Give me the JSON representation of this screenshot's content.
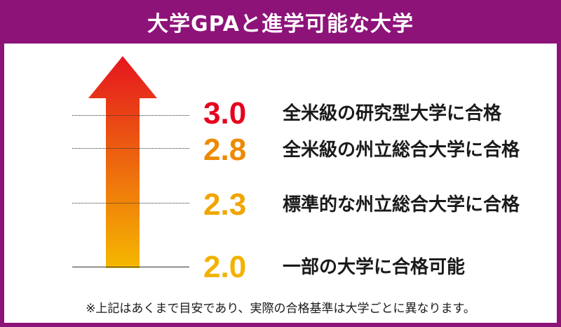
{
  "header": {
    "title": "大学GPAと進学可能な大学"
  },
  "levels": [
    {
      "gpa": "3.0",
      "label": "全米級の研究型大学に合格",
      "color": "#e6001e"
    },
    {
      "gpa": "2.8",
      "label": "全米級の州立総合大学に合格",
      "color": "#ed8a00"
    },
    {
      "gpa": "2.3",
      "label": "標準的な州立総合大学に合格",
      "color": "#f0a500"
    },
    {
      "gpa": "2.0",
      "label": "一部の大学に合格可能",
      "color": "#f2b200"
    }
  ],
  "arrow": {
    "top_color": "#e5151e",
    "bottom_color": "#f5b800"
  },
  "frame_color": "#8d1379",
  "note": "※上記はあくまで目安であり、実際の合格基準は大学ごとに異なります。"
}
